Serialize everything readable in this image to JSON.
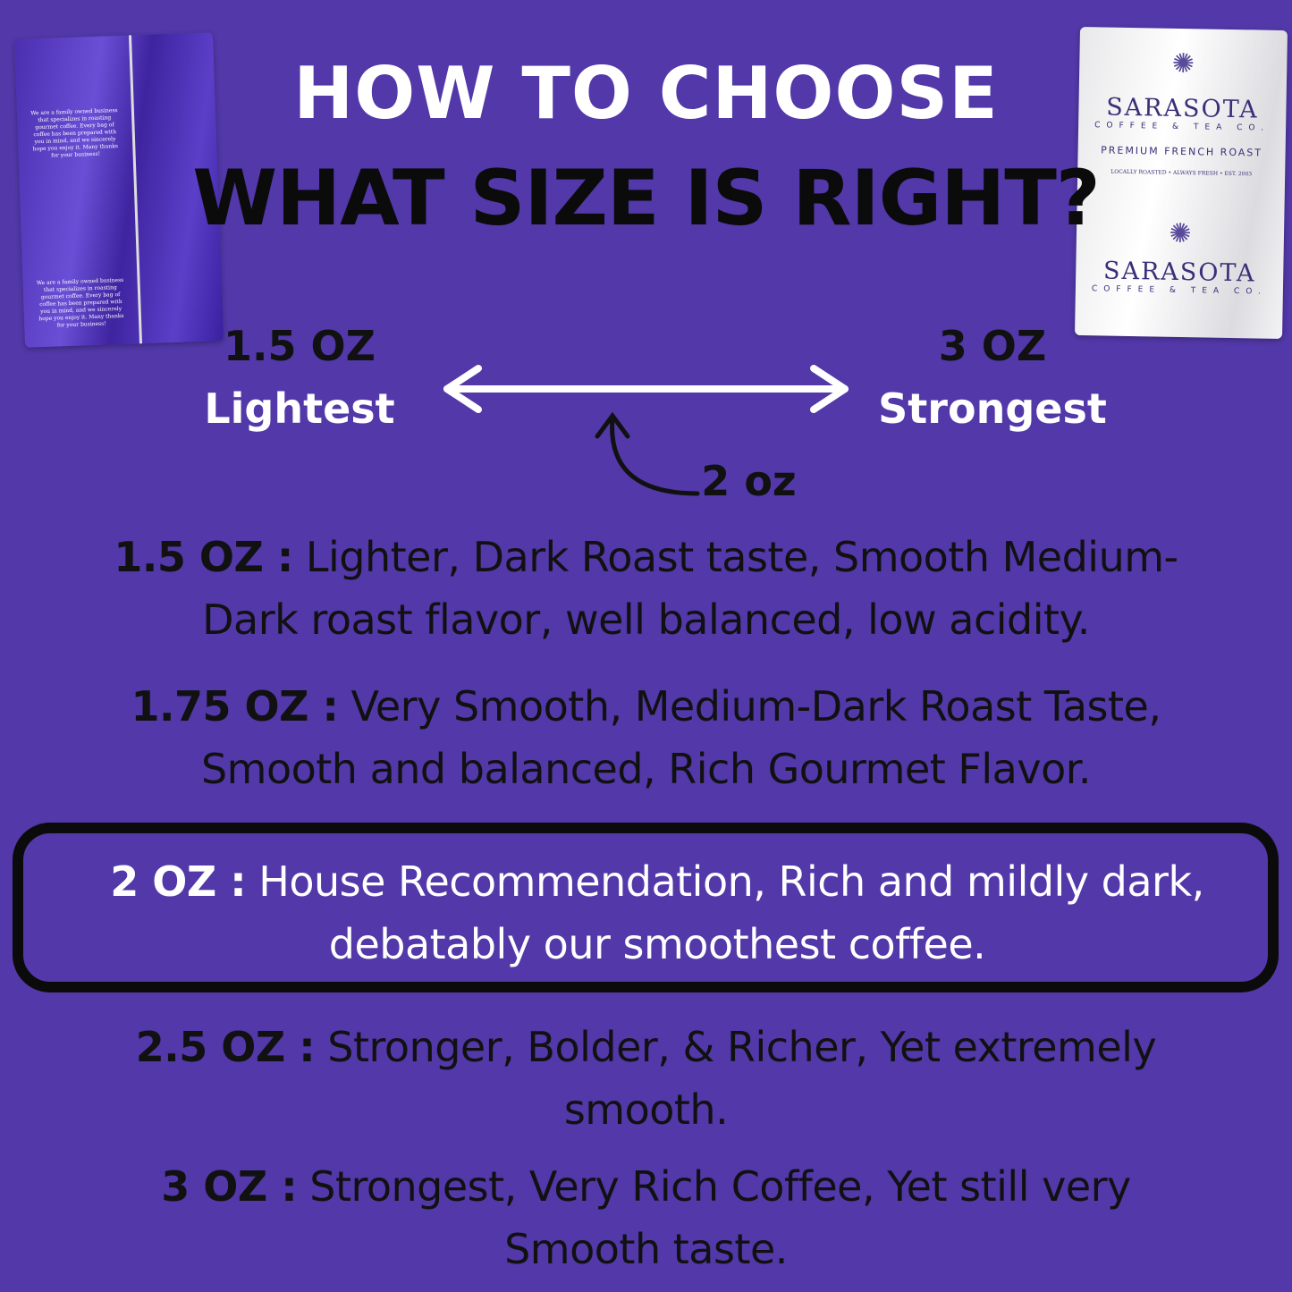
{
  "title": {
    "line1": "HOW TO CHOOSE",
    "line2": "WHAT SIZE IS RIGHT?"
  },
  "colors": {
    "background": "#5238a8",
    "heading_primary": "#ffffff",
    "heading_secondary": "#0b0b0b",
    "highlight_border": "#0b0b0b"
  },
  "bags": {
    "back": {
      "text": "We are a family owned business that specializes in roasting gourmet coffee. Every bag of coffee has been prepared with you in mind, and we sincerely hope you enjoy it. Many thanks for your business!"
    },
    "front": {
      "brand": "SARASOTA",
      "sub": "COFFEE & TEA CO.",
      "product": "PREMIUM FRENCH ROAST",
      "tagline": "LOCALLY ROASTED • ALWAYS FRESH • EST. 2003"
    }
  },
  "scale": {
    "left": {
      "amount": "1.5 OZ",
      "label": "Lightest"
    },
    "right": {
      "amount": "3 OZ",
      "label": "Strongest"
    },
    "marker": "2 oz"
  },
  "sizes": [
    {
      "label": "1.5 OZ :",
      "line1": " Lighter, Dark Roast taste, Smooth Medium-",
      "line2": "Dark roast flavor, well balanced, low acidity."
    },
    {
      "label": "1.75 OZ :",
      "line1": " Very Smooth, Medium-Dark Roast Taste,",
      "line2": "Smooth and balanced, Rich Gourmet Flavor."
    },
    {
      "label": "2 OZ :",
      "line1": " House Recommendation, Rich and mildly dark,",
      "line2": "debatably our smoothest coffee.",
      "highlighted": true
    },
    {
      "label": "2.5 OZ :",
      "line1": " Stronger, Bolder, & Richer, Yet extremely",
      "line2": "smooth."
    },
    {
      "label": "3 OZ :",
      "line1": " Strongest, Very Rich Coffee, Yet still very",
      "line2": "Smooth taste."
    }
  ]
}
